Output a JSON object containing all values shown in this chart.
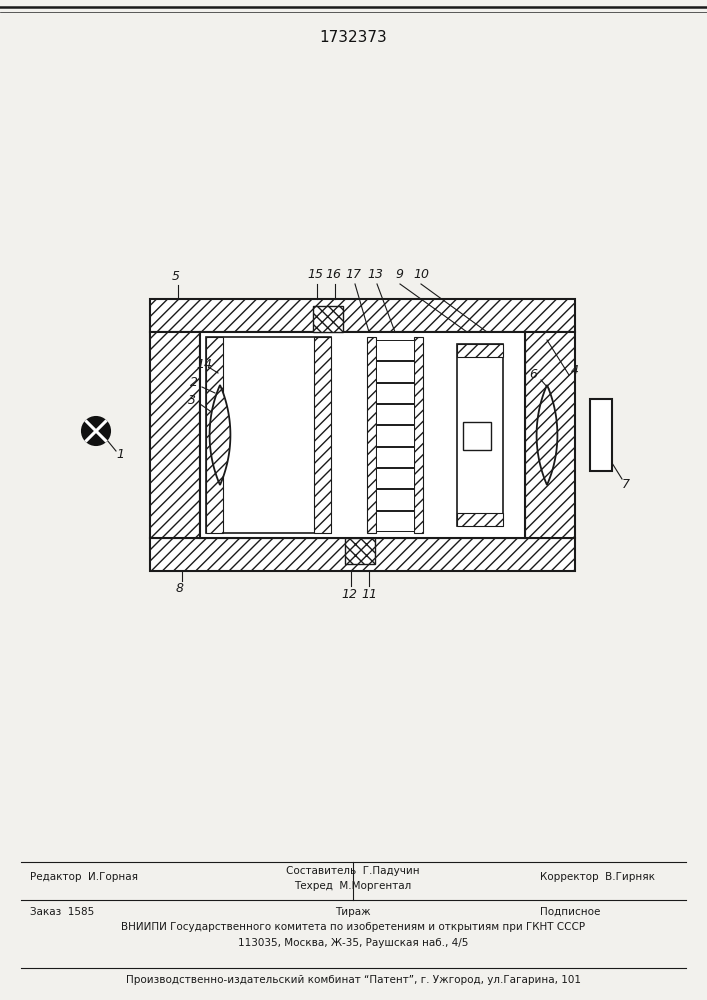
{
  "title": "1732373",
  "bg": "#f2f1ed",
  "lc": "#1a1a1a",
  "footer": {
    "line1_left": "Редактор  И.Горная",
    "line1_center_1": "Составитель  Г.Падучин",
    "line1_center_2": "Техред  М.Моргентал",
    "line1_right": "Корректор  В.Гирняк",
    "line2_left": "Заказ  1585",
    "line2_center": "Тираж",
    "line2_right": "Подписное",
    "line3": "ВНИИПИ Государственного комитета по изобретениям и открытиям при ГКНТ СССР",
    "line4": "113035, Москва, Ж-35, Раушская наб., 4/5",
    "line5": "Производственно-издательский комбинат “Патент”, г. Ужгород, ул.Гагарина, 101"
  }
}
